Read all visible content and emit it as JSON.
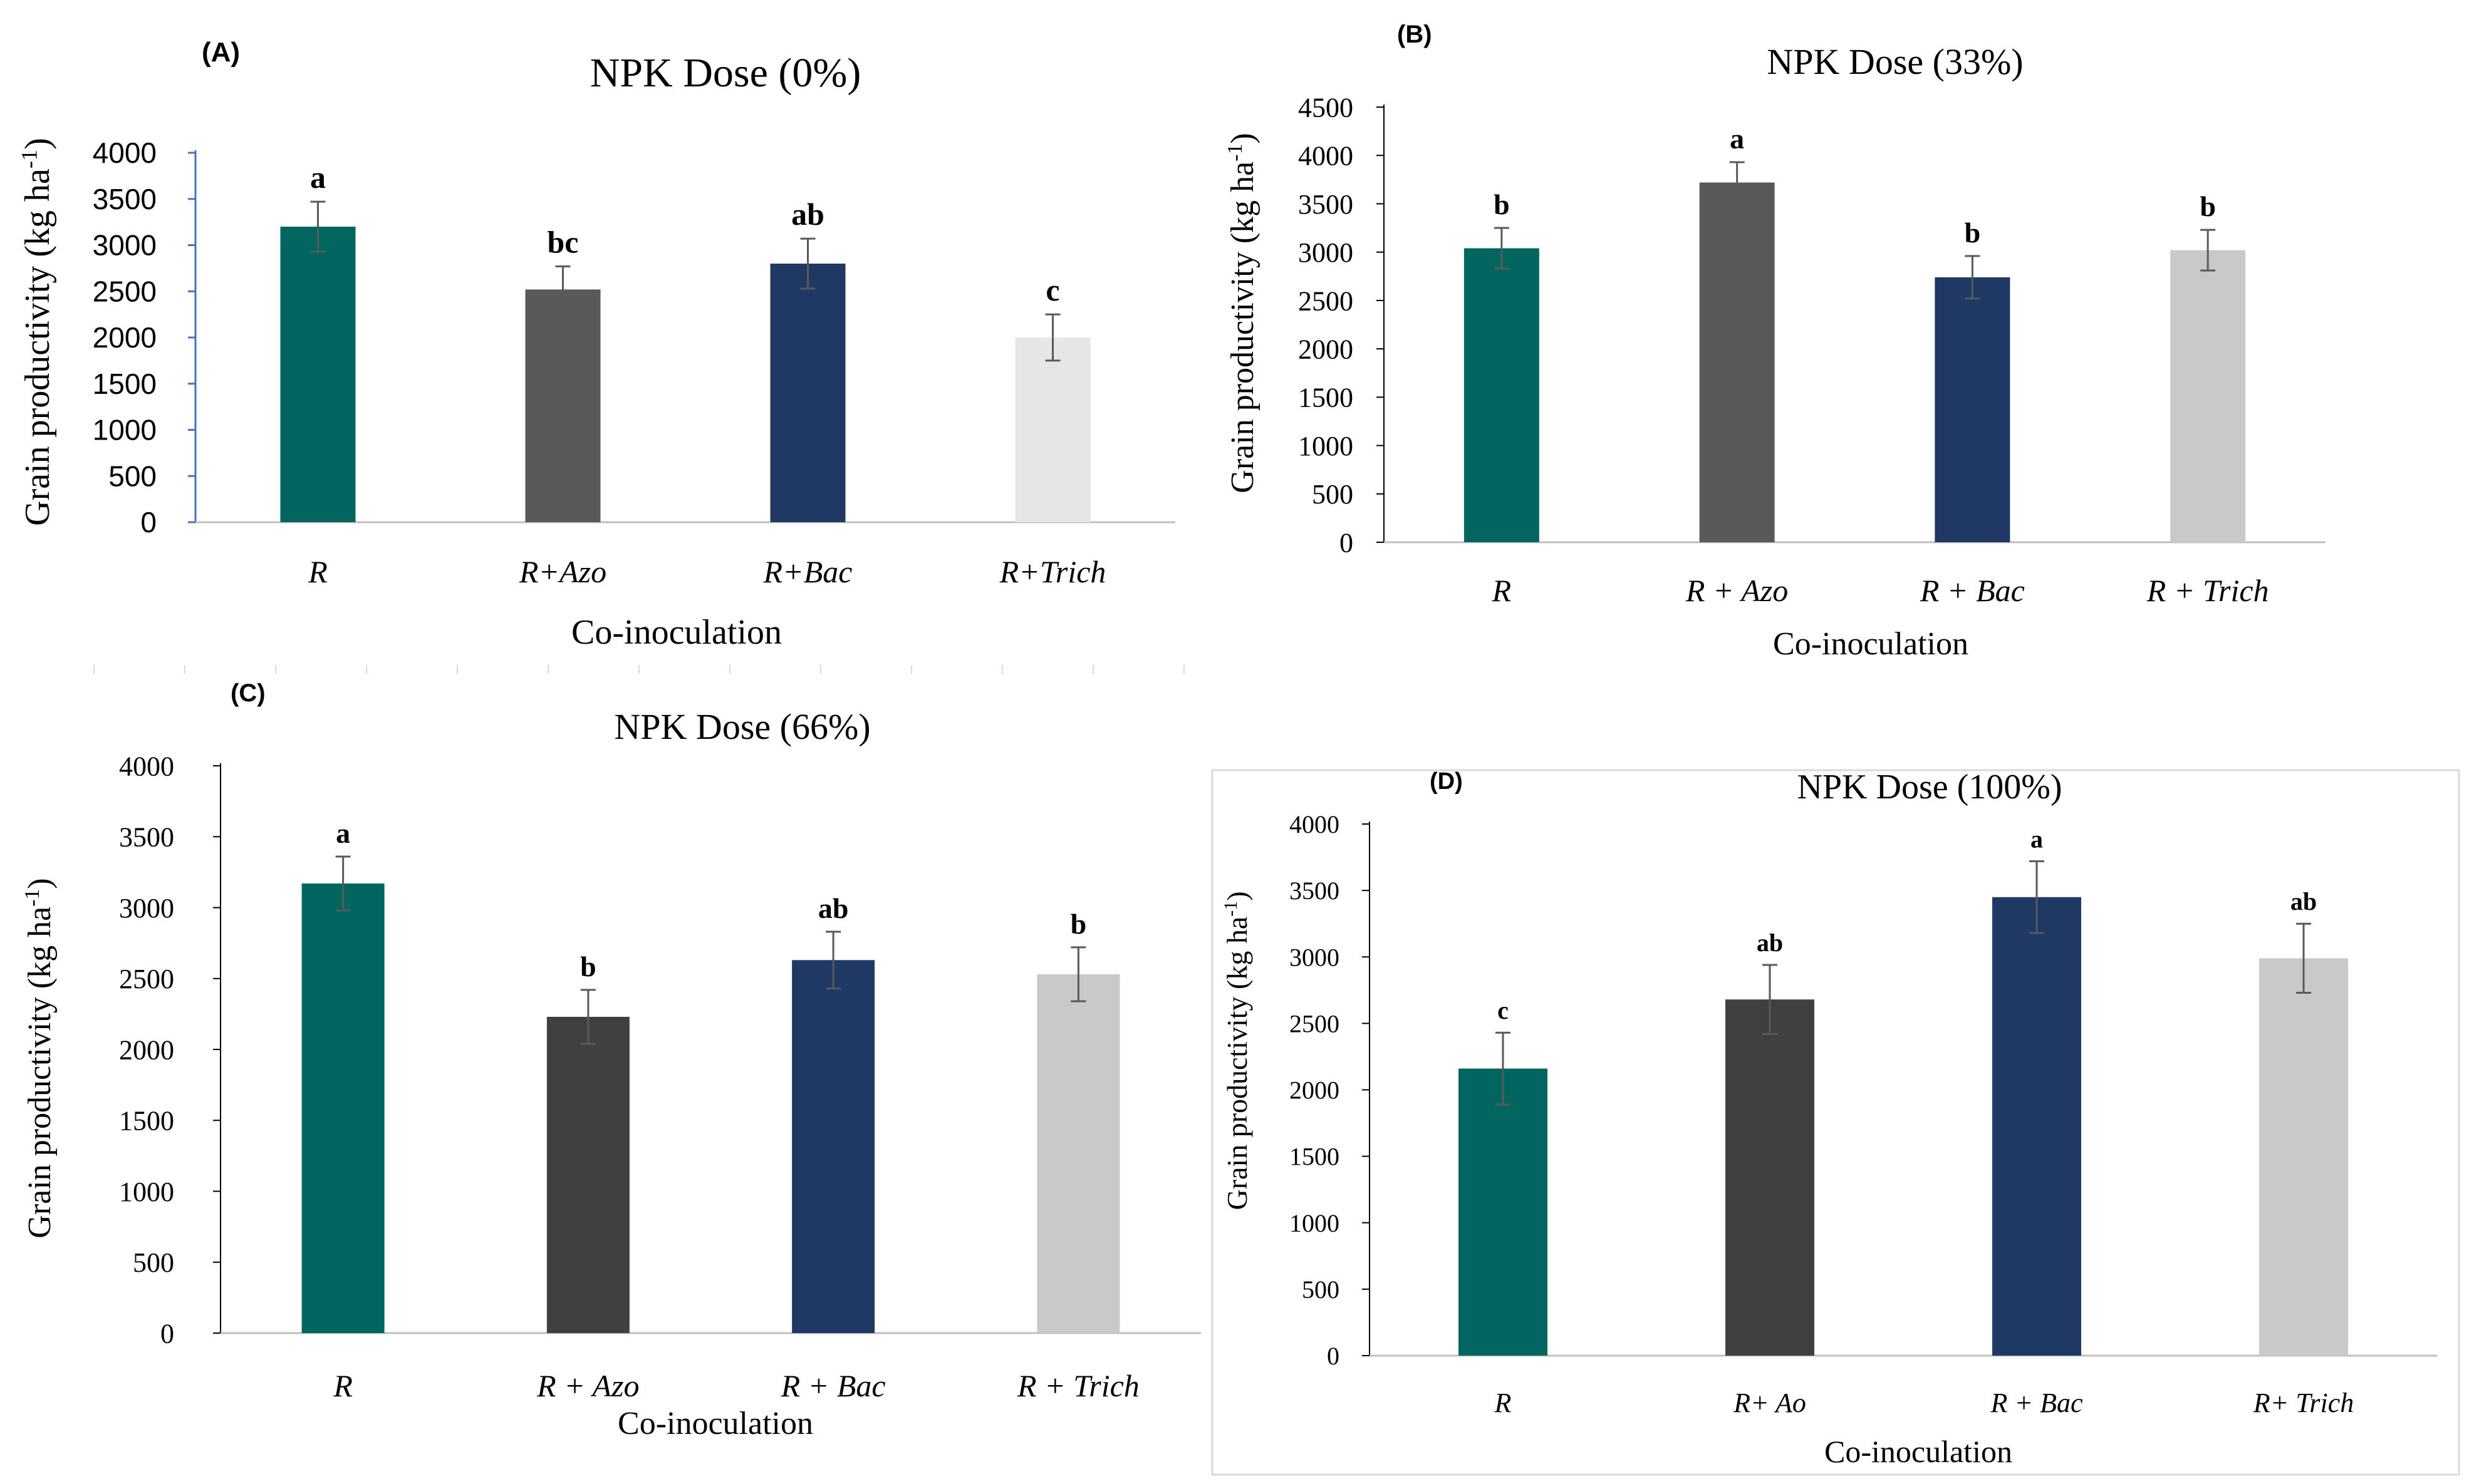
{
  "chart_data": [
    {
      "panel": "(A)",
      "type": "bar",
      "title": "NPK Dose (0%)",
      "xlabel": "Co-inoculation",
      "ylabel": "Grain productivity (kg ha-1)",
      "categories": [
        "R",
        "R+Azo",
        "R+Bac",
        "R+Trich"
      ],
      "values": [
        3200,
        2520,
        2800,
        2000
      ],
      "errors": [
        270,
        250,
        270,
        250
      ],
      "letters": [
        "a",
        "bc",
        "ab",
        "c"
      ],
      "colors": [
        "#00665e",
        "#595959",
        "#203864",
        "#e7e6e6"
      ],
      "ylim": [
        0,
        4000
      ],
      "yticks": [
        "0",
        "500",
        "1000",
        "1500",
        "2000",
        "2500",
        "3000",
        "3500",
        "4000"
      ]
    },
    {
      "panel": "(B)",
      "type": "bar",
      "title": "NPK Dose (33%)",
      "xlabel": "Co-inoculation",
      "ylabel": "Grain productivity (kg ha-1)",
      "categories": [
        "R",
        "R + Azo",
        "R + Bac",
        "R + Trich"
      ],
      "values": [
        3040,
        3720,
        2740,
        3020
      ],
      "errors": [
        210,
        210,
        220,
        210
      ],
      "letters": [
        "b",
        "a",
        "b",
        "b"
      ],
      "colors": [
        "#00665e",
        "#595959",
        "#203864",
        "#c9c9c9"
      ],
      "ylim": [
        0,
        4500
      ],
      "yticks": [
        "0",
        "500",
        "1000",
        "1500",
        "2000",
        "2500",
        "3000",
        "3500",
        "4000",
        "4500"
      ]
    },
    {
      "panel": "(C)",
      "type": "bar",
      "title": "NPK Dose (66%)",
      "xlabel": "Co-inoculation",
      "ylabel": "Grain productivity (kg ha-1)",
      "categories": [
        "R",
        "R + Azo",
        "R + Bac",
        "R + Trich"
      ],
      "values": [
        3170,
        2230,
        2630,
        2530
      ],
      "errors": [
        190,
        190,
        200,
        190
      ],
      "letters": [
        "a",
        "b",
        "ab",
        "b"
      ],
      "colors": [
        "#00665e",
        "#404040",
        "#203864",
        "#c9c9c9"
      ],
      "ylim": [
        0,
        4000
      ],
      "yticks": [
        "0",
        "500",
        "1000",
        "1500",
        "2000",
        "2500",
        "3000",
        "3500",
        "4000"
      ]
    },
    {
      "panel": "(D)",
      "type": "bar",
      "title": "NPK Dose (100%)",
      "xlabel": "Co-inoculation",
      "ylabel": "Grain productivity (kg ha-1)",
      "categories": [
        "R",
        "R+ Ao",
        "R + Bac",
        "R+ Trich"
      ],
      "values": [
        2160,
        2680,
        3450,
        2990
      ],
      "errors": [
        270,
        260,
        270,
        260
      ],
      "letters": [
        "c",
        "ab",
        "a",
        "ab"
      ],
      "colors": [
        "#00665e",
        "#404040",
        "#203864",
        "#c9c9c9"
      ],
      "ylim": [
        0,
        4000
      ],
      "yticks": [
        "0",
        "500",
        "1000",
        "1500",
        "2000",
        "2500",
        "3000",
        "3500",
        "4000"
      ]
    }
  ]
}
